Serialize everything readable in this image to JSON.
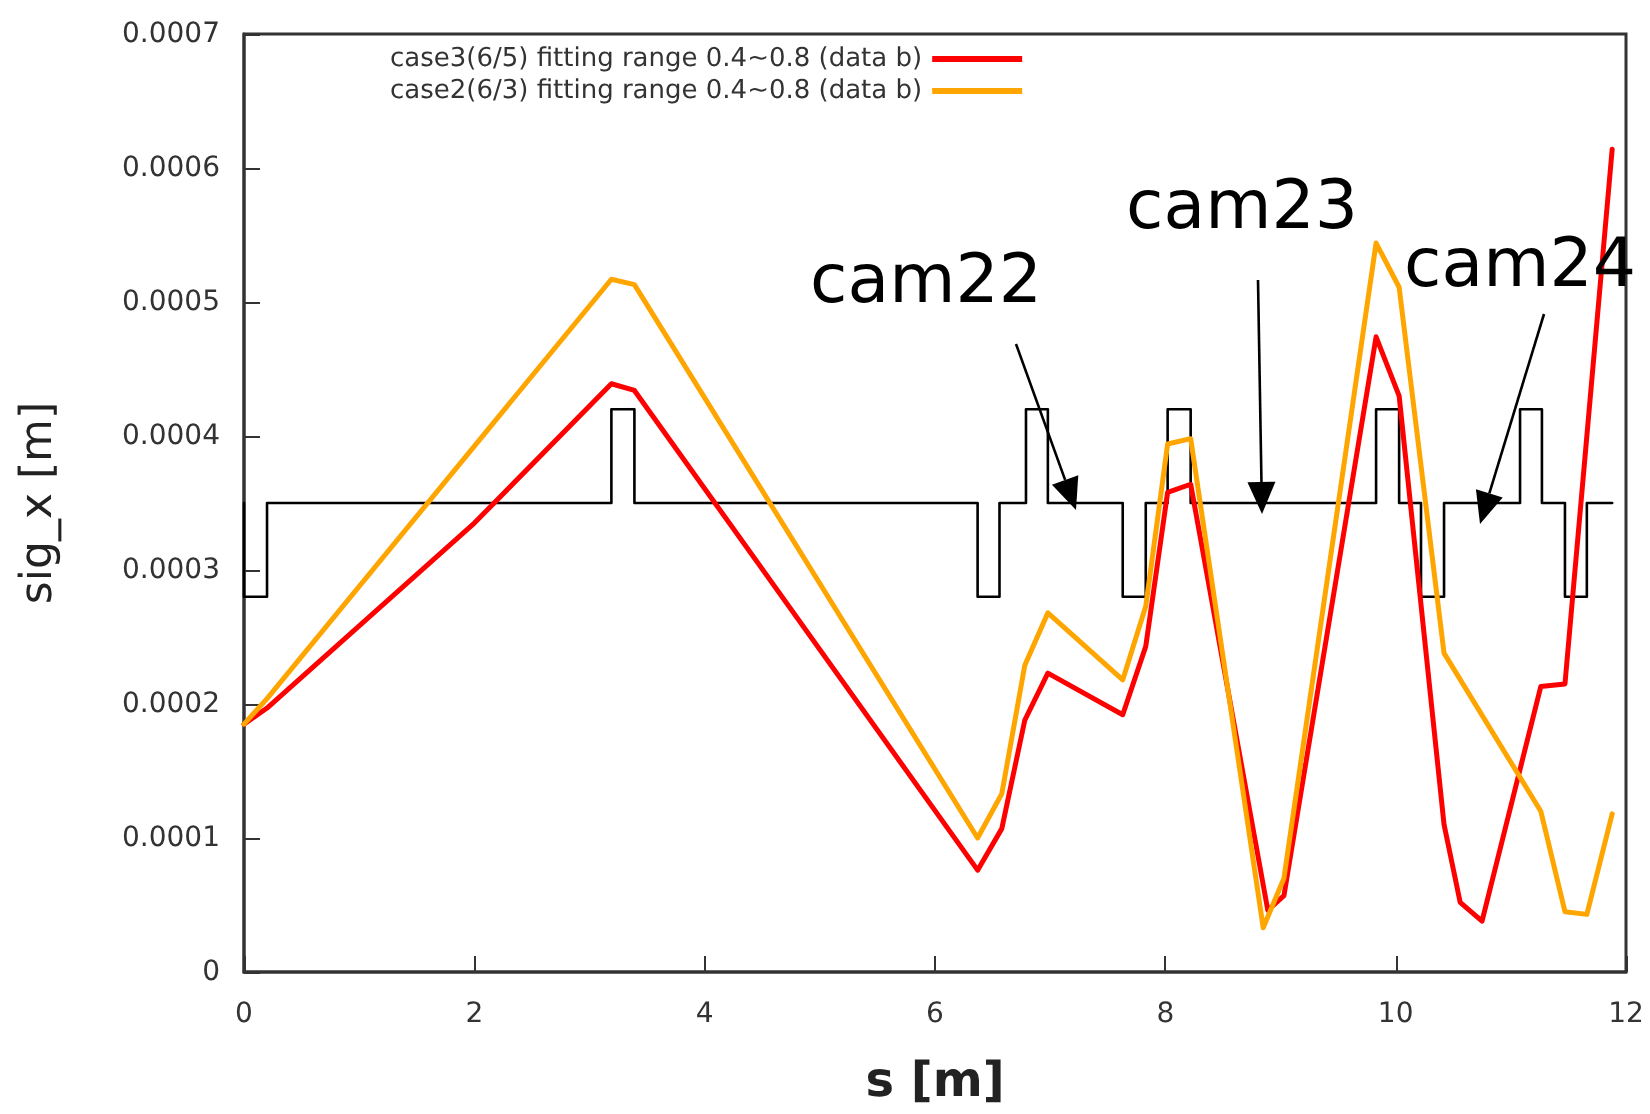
{
  "chart_data": {
    "type": "line",
    "xlabel": "s [m]",
    "ylabel": "sig_x [m]",
    "xlim": [
      0,
      12
    ],
    "xticks": [
      0,
      2,
      4,
      6,
      8,
      10,
      12
    ],
    "ylim": [
      0,
      0.0007
    ],
    "yticks": [
      0,
      0.0001,
      0.0002,
      0.0003,
      0.0004,
      0.0005,
      0.0006,
      0.0007
    ],
    "grid": false,
    "legend": "top",
    "marker": "none",
    "line_style": "solid",
    "series": [
      {
        "name": "case3(6/5) fitting range 0.4~0.8 (data b)",
        "color": "#ff0000",
        "x": [
          0,
          0.2,
          2.0,
          3.19,
          3.39,
          6.37,
          6.58,
          6.78,
          6.98,
          7.63,
          7.83,
          8.02,
          8.22,
          8.89,
          9.03,
          9.83,
          10.03,
          10.42,
          10.56,
          10.75,
          11.26,
          11.47,
          11.88
        ],
        "values": [
          0.000185,
          0.000197,
          0.000335,
          0.000439,
          0.000434,
          7.6e-05,
          0.000107,
          0.000188,
          0.000223,
          0.000192,
          0.000243,
          0.000358,
          0.000364,
          4.6e-05,
          5.7e-05,
          0.000474,
          0.00043,
          0.00011,
          5.2e-05,
          3.8e-05,
          0.000213,
          0.000215,
          0.000614
        ]
      },
      {
        "name": "case2(6/3) fitting range 0.4~0.8 (data b)",
        "color": "#ffa500",
        "x": [
          0,
          0.2,
          3.19,
          3.39,
          6.37,
          6.58,
          6.78,
          6.98,
          7.63,
          7.83,
          8.02,
          8.22,
          8.85,
          9.03,
          9.83,
          10.03,
          10.42,
          11.26,
          11.47,
          11.66,
          11.88
        ],
        "values": [
          0.000185,
          0.000204,
          0.000517,
          0.000513,
          0.0001,
          0.000133,
          0.000229,
          0.000268,
          0.000218,
          0.000273,
          0.000394,
          0.000398,
          3.3e-05,
          7e-05,
          0.000544,
          0.000511,
          0.000238,
          0.00012,
          4.5e-05,
          4.3e-05,
          0.000118
        ]
      },
      {
        "color": "#000000",
        "x": [
          0,
          0,
          0.2,
          0.2,
          3.19,
          3.19,
          3.39,
          3.39,
          6.37,
          6.37,
          6.56,
          6.56,
          6.79,
          6.79,
          6.98,
          6.98,
          7.63,
          7.63,
          7.83,
          7.83,
          8.02,
          8.02,
          8.22,
          8.22,
          9.83,
          9.83,
          10.03,
          10.03,
          10.22,
          10.22,
          10.42,
          10.42,
          11.08,
          11.08,
          11.27,
          11.27,
          11.47,
          11.47,
          11.66,
          11.66,
          11.88
        ],
        "values": [
          0.00035,
          0.00028,
          0.00028,
          0.00035,
          0.00035,
          0.00042,
          0.00042,
          0.00035,
          0.00035,
          0.00028,
          0.00028,
          0.00035,
          0.00035,
          0.00042,
          0.00042,
          0.00035,
          0.00035,
          0.00028,
          0.00028,
          0.00035,
          0.00035,
          0.00042,
          0.00042,
          0.00035,
          0.00035,
          0.00042,
          0.00042,
          0.00035,
          0.00035,
          0.00028,
          0.00028,
          0.00035,
          0.00035,
          0.00042,
          0.00042,
          0.00035,
          0.00035,
          0.00028,
          0.00028,
          0.00035,
          0.00035
        ]
      }
    ],
    "annotations": [
      "cam22",
      "cam23",
      "cam24"
    ]
  }
}
